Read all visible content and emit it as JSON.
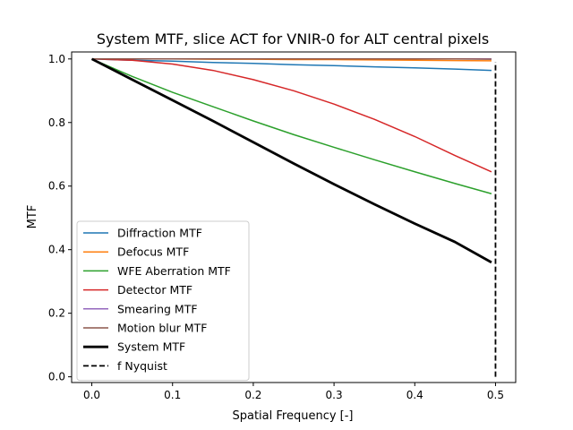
{
  "chart_data": {
    "type": "line",
    "title": "System MTF, slice ACT for VNIR-0 for ALT central pixels",
    "xlabel": "Spatial Frequency [-]",
    "ylabel": "MTF",
    "xlim": [
      -0.025,
      0.525
    ],
    "ylim": [
      -0.018,
      1.022
    ],
    "xticks": [
      0.0,
      0.1,
      0.2,
      0.3,
      0.4,
      0.5
    ],
    "xtick_labels": [
      "0.0",
      "0.1",
      "0.2",
      "0.3",
      "0.4",
      "0.5"
    ],
    "yticks": [
      0.0,
      0.2,
      0.4,
      0.6,
      0.8,
      1.0
    ],
    "ytick_labels": [
      "0.0",
      "0.2",
      "0.4",
      "0.6",
      "0.8",
      "1.0"
    ],
    "legend_position": "lower-left",
    "grid": false,
    "x": [
      0.0,
      0.05,
      0.1,
      0.15,
      0.2,
      0.25,
      0.3,
      0.35,
      0.4,
      0.45,
      0.495
    ],
    "series": [
      {
        "name": "Diffraction MTF",
        "color": "#1f77b4",
        "width": 1.5,
        "dash": "",
        "values": [
          1.0,
          0.996,
          0.993,
          0.989,
          0.986,
          0.982,
          0.979,
          0.975,
          0.972,
          0.968,
          0.964
        ]
      },
      {
        "name": "Defocus MTF",
        "color": "#ff7f0e",
        "width": 1.5,
        "dash": "",
        "values": [
          1.0,
          1.0,
          1.0,
          0.999,
          0.999,
          0.998,
          0.998,
          0.997,
          0.996,
          0.995,
          0.994
        ]
      },
      {
        "name": "WFE Aberration MTF",
        "color": "#2ca02c",
        "width": 1.5,
        "dash": "",
        "values": [
          1.0,
          0.945,
          0.895,
          0.85,
          0.805,
          0.762,
          0.722,
          0.683,
          0.645,
          0.608,
          0.576
        ]
      },
      {
        "name": "Detector MTF",
        "color": "#d62728",
        "width": 1.5,
        "dash": "",
        "values": [
          1.0,
          0.996,
          0.984,
          0.964,
          0.935,
          0.9,
          0.858,
          0.81,
          0.756,
          0.696,
          0.645
        ]
      },
      {
        "name": "Smearing MTF",
        "color": "#9467bd",
        "width": 1.5,
        "dash": "",
        "values": [
          1.0,
          1.0,
          1.0,
          1.0,
          1.0,
          1.0,
          1.0,
          1.0,
          1.0,
          1.0,
          1.0
        ]
      },
      {
        "name": "Motion blur MTF",
        "color": "#8c564b",
        "width": 1.5,
        "dash": "",
        "values": [
          1.0,
          1.0,
          1.0,
          1.0,
          1.0,
          1.0,
          1.0,
          1.0,
          1.0,
          1.0,
          0.999
        ]
      },
      {
        "name": "System MTF",
        "color": "#000000",
        "width": 2.8,
        "dash": "",
        "values": [
          1.0,
          0.935,
          0.87,
          0.805,
          0.738,
          0.671,
          0.606,
          0.543,
          0.482,
          0.424,
          0.36
        ]
      }
    ],
    "nyquist": {
      "name": "f Nyquist",
      "color": "#000000",
      "x": 0.5,
      "y_range": [
        0.0,
        0.99
      ]
    }
  }
}
